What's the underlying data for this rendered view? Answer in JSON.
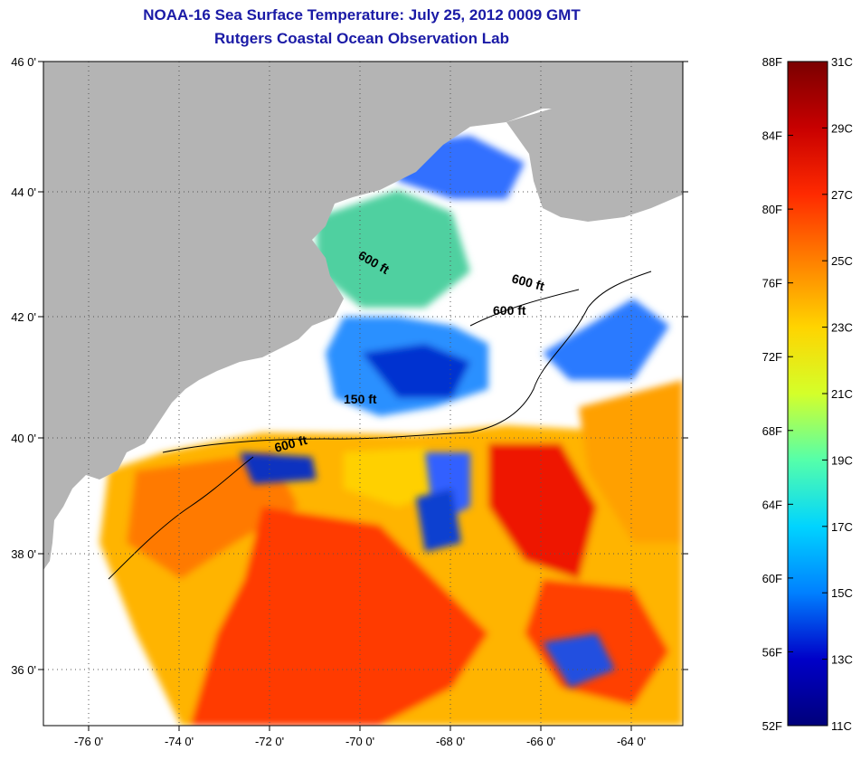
{
  "title": "NOAA-16 Sea Surface Temperature:  July 25, 2012 0009 GMT",
  "subtitle": "Rutgers Coastal Ocean Observation Lab",
  "map": {
    "lat_labels": [
      "46 0'",
      "44 0'",
      "42 0'",
      "40 0'",
      "38 0'",
      "36 0'"
    ],
    "lon_labels": [
      "-76 0'",
      "-74 0'",
      "-72 0'",
      "-70 0'",
      "-68 0'",
      "-66 0'",
      "-64 0'"
    ],
    "contour_labels": [
      "600 ft",
      "600 ft",
      "600 ft",
      "150 ft",
      "600 ft"
    ],
    "colors": {
      "land": "#b4b4b4",
      "cloud": "#ffffff",
      "frame": "#000000"
    }
  },
  "colorbar": {
    "f_labels": [
      "88F",
      "84F",
      "80F",
      "76F",
      "72F",
      "68F",
      "64F",
      "60F",
      "56F",
      "52F"
    ],
    "c_labels": [
      "31C",
      "29C",
      "27C",
      "25C",
      "23C",
      "21C",
      "19C",
      "17C",
      "15C",
      "13C",
      "11C"
    ],
    "stops": [
      "#7a0000",
      "#c80000",
      "#ff2a00",
      "#ff8000",
      "#ffd400",
      "#d4ff2a",
      "#55ffaa",
      "#00d4ff",
      "#0080ff",
      "#0000c8",
      "#00007a"
    ]
  }
}
